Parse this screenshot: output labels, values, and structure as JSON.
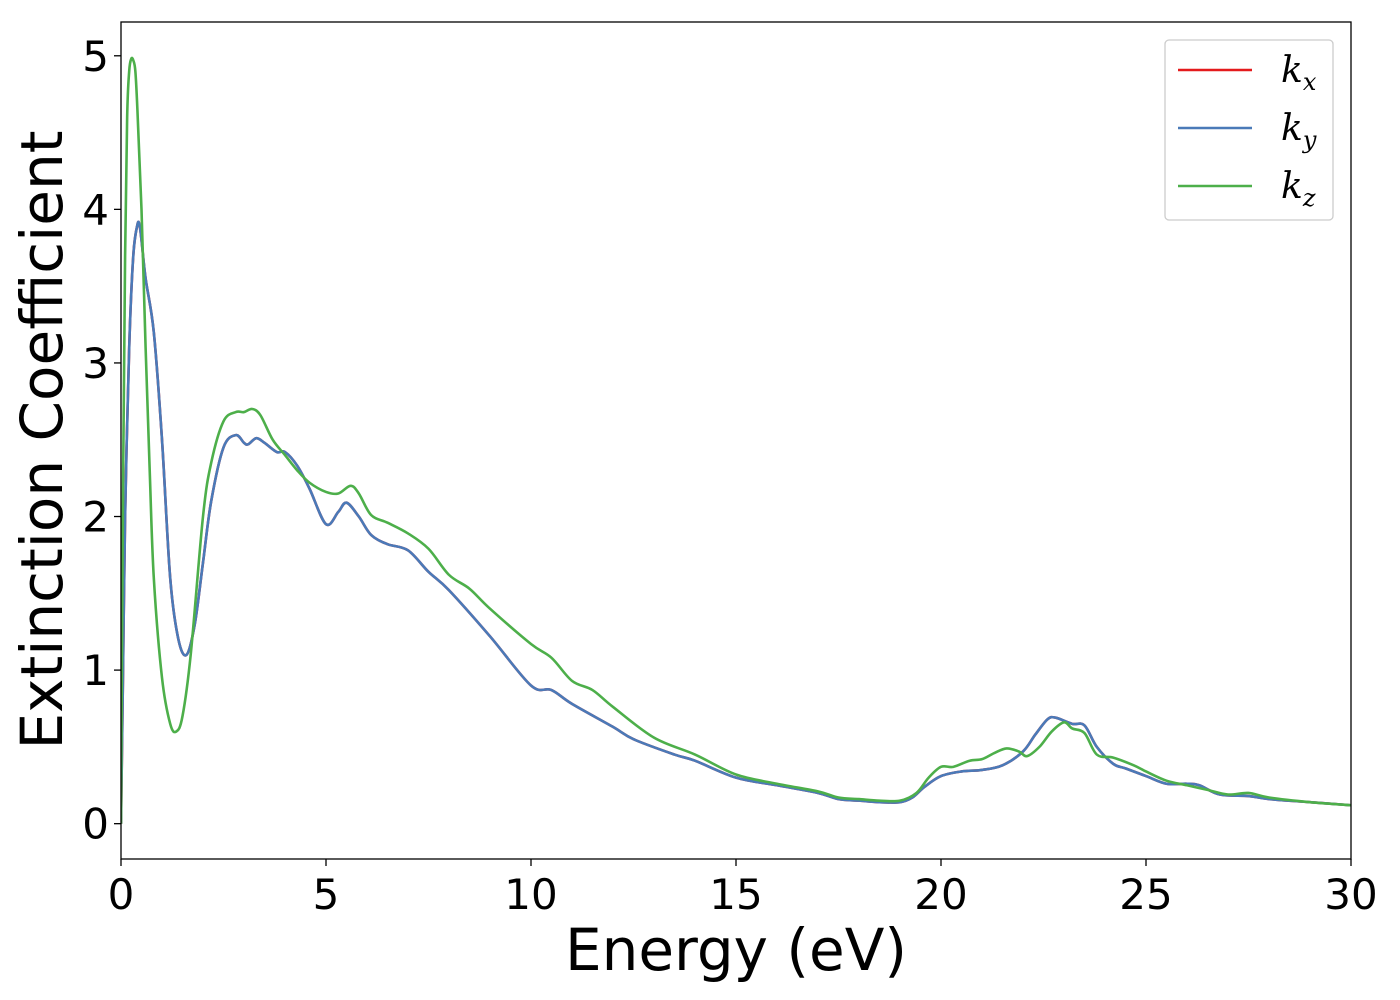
{
  "chart_data": {
    "type": "line",
    "xlabel": "Energy (eV)",
    "ylabel": "Extinction Coefficient",
    "xlim": [
      0,
      30
    ],
    "ylim": [
      -0.23,
      5.22
    ],
    "xticks": [
      0,
      5,
      10,
      15,
      20,
      25,
      30
    ],
    "yticks": [
      0,
      1,
      2,
      3,
      4,
      5
    ],
    "xtick_labels": [
      "0",
      "5",
      "10",
      "15",
      "20",
      "25",
      "30"
    ],
    "ytick_labels": [
      "0",
      "1",
      "2",
      "3",
      "4",
      "5"
    ],
    "grid": false,
    "legend_position": "top-right",
    "series": [
      {
        "name": "k_x",
        "label_base": "k",
        "label_sub": "x",
        "color": "#e41a1c",
        "x": [
          0,
          0.05,
          0.1,
          0.2,
          0.3,
          0.4,
          0.45,
          0.5,
          0.6,
          0.8,
          1.0,
          1.2,
          1.4,
          1.6,
          1.8,
          2.0,
          2.2,
          2.5,
          2.8,
          3.0,
          3.1,
          3.3,
          3.5,
          3.8,
          4.0,
          4.3,
          4.6,
          5.0,
          5.3,
          5.5,
          5.8,
          6.1,
          6.5,
          7.0,
          7.5,
          8.0,
          9.0,
          10.0,
          10.5,
          11.0,
          12.0,
          12.5,
          13.5,
          14.0,
          15.0,
          16.0,
          17.0,
          17.5,
          18.0,
          18.5,
          19.0,
          19.3,
          19.6,
          20.0,
          20.5,
          21.0,
          21.5,
          22.0,
          22.3,
          22.6,
          22.8,
          23.2,
          23.5,
          23.8,
          24.2,
          24.5,
          25.0,
          25.5,
          26.0,
          26.3,
          26.8,
          27.5,
          28.0,
          29.0,
          30.0
        ],
        "y": [
          0.0,
          1.0,
          2.0,
          3.1,
          3.7,
          3.9,
          3.9,
          3.8,
          3.55,
          3.2,
          2.5,
          1.6,
          1.2,
          1.1,
          1.3,
          1.7,
          2.1,
          2.45,
          2.53,
          2.48,
          2.47,
          2.51,
          2.48,
          2.42,
          2.42,
          2.33,
          2.18,
          1.95,
          2.03,
          2.09,
          2.0,
          1.88,
          1.82,
          1.78,
          1.64,
          1.52,
          1.22,
          0.9,
          0.87,
          0.78,
          0.63,
          0.55,
          0.45,
          0.41,
          0.3,
          0.25,
          0.2,
          0.16,
          0.15,
          0.14,
          0.14,
          0.17,
          0.24,
          0.31,
          0.34,
          0.35,
          0.38,
          0.47,
          0.58,
          0.68,
          0.69,
          0.65,
          0.64,
          0.5,
          0.39,
          0.36,
          0.31,
          0.26,
          0.26,
          0.25,
          0.19,
          0.18,
          0.16,
          0.14,
          0.12
        ]
      },
      {
        "name": "k_y",
        "label_base": "k",
        "label_sub": "y",
        "color": "#4a7ab8",
        "x": [
          0,
          0.05,
          0.1,
          0.2,
          0.3,
          0.4,
          0.45,
          0.5,
          0.6,
          0.8,
          1.0,
          1.2,
          1.4,
          1.6,
          1.8,
          2.0,
          2.2,
          2.5,
          2.8,
          3.0,
          3.1,
          3.3,
          3.5,
          3.8,
          4.0,
          4.3,
          4.6,
          5.0,
          5.3,
          5.5,
          5.8,
          6.1,
          6.5,
          7.0,
          7.5,
          8.0,
          9.0,
          10.0,
          10.5,
          11.0,
          12.0,
          12.5,
          13.5,
          14.0,
          15.0,
          16.0,
          17.0,
          17.5,
          18.0,
          18.5,
          19.0,
          19.3,
          19.6,
          20.0,
          20.5,
          21.0,
          21.5,
          22.0,
          22.3,
          22.6,
          22.8,
          23.2,
          23.5,
          23.8,
          24.2,
          24.5,
          25.0,
          25.5,
          26.0,
          26.3,
          26.8,
          27.5,
          28.0,
          29.0,
          30.0
        ],
        "y": [
          0.0,
          1.0,
          2.0,
          3.1,
          3.7,
          3.9,
          3.9,
          3.8,
          3.55,
          3.2,
          2.5,
          1.6,
          1.2,
          1.1,
          1.3,
          1.7,
          2.1,
          2.45,
          2.53,
          2.48,
          2.47,
          2.51,
          2.48,
          2.42,
          2.42,
          2.33,
          2.18,
          1.95,
          2.03,
          2.09,
          2.0,
          1.88,
          1.82,
          1.78,
          1.64,
          1.52,
          1.22,
          0.9,
          0.87,
          0.78,
          0.63,
          0.55,
          0.45,
          0.41,
          0.3,
          0.25,
          0.2,
          0.16,
          0.15,
          0.14,
          0.14,
          0.17,
          0.24,
          0.31,
          0.34,
          0.35,
          0.38,
          0.47,
          0.58,
          0.68,
          0.69,
          0.65,
          0.64,
          0.5,
          0.39,
          0.36,
          0.31,
          0.26,
          0.26,
          0.25,
          0.19,
          0.18,
          0.16,
          0.14,
          0.12
        ]
      },
      {
        "name": "k_z",
        "label_base": "k",
        "label_sub": "z",
        "color": "#4daf4a",
        "x": [
          0,
          0.05,
          0.1,
          0.15,
          0.2,
          0.25,
          0.3,
          0.35,
          0.4,
          0.5,
          0.6,
          0.7,
          0.8,
          1.0,
          1.2,
          1.35,
          1.5,
          1.7,
          2.0,
          2.2,
          2.5,
          2.8,
          3.0,
          3.2,
          3.4,
          3.7,
          4.0,
          4.3,
          4.6,
          5.0,
          5.3,
          5.6,
          5.8,
          6.1,
          6.5,
          7.0,
          7.5,
          8.0,
          8.5,
          9.0,
          10.0,
          10.5,
          11.0,
          11.5,
          12.0,
          13.0,
          14.0,
          15.0,
          16.0,
          17.0,
          17.5,
          18.0,
          18.5,
          19.0,
          19.4,
          19.7,
          20.0,
          20.3,
          20.7,
          21.0,
          21.3,
          21.6,
          21.9,
          22.1,
          22.4,
          22.7,
          23.0,
          23.2,
          23.5,
          23.8,
          24.2,
          24.7,
          25.0,
          25.5,
          26.0,
          26.5,
          27.0,
          27.5,
          28.0,
          29.0,
          30.0
        ],
        "y": [
          0.0,
          2.2,
          3.7,
          4.6,
          4.9,
          4.98,
          4.97,
          4.9,
          4.65,
          4.0,
          3.1,
          2.3,
          1.6,
          0.95,
          0.65,
          0.6,
          0.7,
          1.1,
          2.0,
          2.35,
          2.62,
          2.68,
          2.68,
          2.7,
          2.66,
          2.5,
          2.4,
          2.3,
          2.22,
          2.16,
          2.15,
          2.2,
          2.15,
          2.01,
          1.96,
          1.89,
          1.79,
          1.62,
          1.53,
          1.4,
          1.17,
          1.08,
          0.93,
          0.87,
          0.76,
          0.56,
          0.45,
          0.32,
          0.26,
          0.21,
          0.17,
          0.16,
          0.15,
          0.15,
          0.2,
          0.3,
          0.37,
          0.37,
          0.41,
          0.42,
          0.46,
          0.49,
          0.47,
          0.44,
          0.5,
          0.6,
          0.66,
          0.62,
          0.59,
          0.45,
          0.43,
          0.38,
          0.34,
          0.28,
          0.25,
          0.22,
          0.19,
          0.2,
          0.17,
          0.14,
          0.12
        ]
      }
    ]
  }
}
